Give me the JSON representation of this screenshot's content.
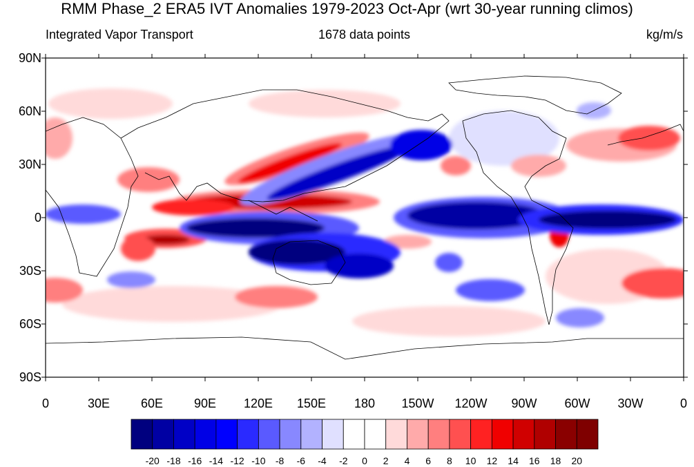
{
  "title": "RMM Phase_2 ERA5 IVT Anomalies 1979-2023 Oct-Apr (wrt 30-year running climos)",
  "left_label": "Integrated Vapor Transport",
  "center_label": "1678 data points",
  "units_label": "kg/m/s",
  "y_ticks": [
    "90N",
    "60N",
    "30N",
    "0",
    "30S",
    "60S",
    "90S"
  ],
  "x_ticks": [
    "0",
    "30E",
    "60E",
    "90E",
    "120E",
    "150E",
    "180",
    "150W",
    "120W",
    "90W",
    "60W",
    "30W",
    "0"
  ],
  "colorbar": {
    "labels": [
      "-20",
      "-18",
      "-16",
      "-14",
      "-12",
      "-10",
      "-8",
      "-6",
      "-4",
      "-2",
      "0",
      "2",
      "4",
      "6",
      "8",
      "10",
      "12",
      "14",
      "16",
      "18",
      "20"
    ],
    "colors": [
      "#00007f",
      "#0000a3",
      "#0000c6",
      "#0000e6",
      "#0000ff",
      "#2a2aff",
      "#5a5aff",
      "#8888ff",
      "#b2b2ff",
      "#e0e0ff",
      "#ffffff",
      "#ffffff",
      "#ffdada",
      "#ffaaaa",
      "#ff7f7f",
      "#ff5050",
      "#ff2222",
      "#f00000",
      "#d00000",
      "#b00000",
      "#8a0000",
      "#7f0000"
    ]
  },
  "map": {
    "projection": "cylindrical-equidistant",
    "lon_range": [
      0,
      360
    ],
    "lat_range": [
      -90,
      90
    ],
    "features": [
      {
        "type": "positive-anomaly",
        "label": "strong",
        "lon": 110,
        "lat": 10
      },
      {
        "type": "negative-anomaly",
        "label": "strong",
        "lon": 120,
        "lat": -12
      },
      {
        "type": "negative-anomaly",
        "label": "strong",
        "lon": 260,
        "lat": 0
      },
      {
        "type": "negative-anomaly",
        "label": "strong",
        "lon": 330,
        "lat": -3
      }
    ]
  }
}
